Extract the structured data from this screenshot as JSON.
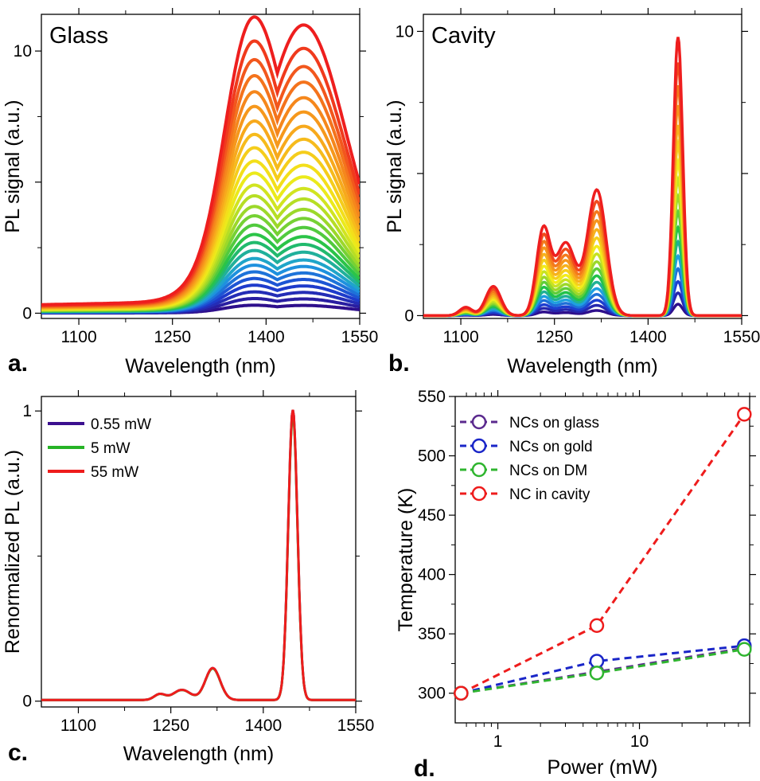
{
  "chart_data": [
    {
      "panel": "a.",
      "type": "line",
      "title": "Glass",
      "xlabel": "Wavelength (nm)",
      "ylabel": "PL signal (a.u.)",
      "xlim": [
        1040,
        1550
      ],
      "ylim": [
        -0.2,
        11.4
      ],
      "xticks": [
        "1100",
        "1250",
        "1400",
        "1550"
      ],
      "yticks": [
        "0",
        "5",
        "10"
      ],
      "ytick_labels_shown": [
        "0",
        "",
        "10"
      ],
      "spectrum_shape": {
        "peaks": [
          {
            "center": 1460,
            "width": 68
          },
          {
            "center": 1360,
            "width": 45
          }
        ],
        "baseline": 0.2
      },
      "series_peak_values": [
        0.3,
        0.55,
        0.8,
        1.05,
        1.3,
        1.55,
        1.8,
        2.05,
        2.35,
        2.65,
        2.95,
        3.3,
        3.65,
        4.0,
        4.4,
        4.8,
        5.25,
        5.7,
        6.2,
        6.7,
        7.2,
        7.75,
        8.3,
        8.9,
        9.5,
        10.2,
        11.1
      ],
      "color_scale": [
        "#2e0f8c",
        "#1d3fd0",
        "#1ea0e0",
        "#22c24a",
        "#9cd82a",
        "#f2ec1a",
        "#f7b21c",
        "#f47a1c",
        "#ee1e1e"
      ]
    },
    {
      "panel": "b.",
      "type": "line",
      "title": "Cavity",
      "xlabel": "Wavelength (nm)",
      "ylabel": "PL signal (a.u.)",
      "xlim": [
        1040,
        1550
      ],
      "ylim": [
        -0.1,
        10.6
      ],
      "xticks": [
        "1100",
        "1250",
        "1400",
        "1550"
      ],
      "yticks": [
        "0",
        "5",
        "10"
      ],
      "ytick_labels_shown": [
        "0",
        "",
        "10"
      ],
      "spectrum_shape": {
        "peaks": [
          {
            "center": 1152,
            "width": 12,
            "rel": 0.105
          },
          {
            "center": 1232,
            "width": 11,
            "rel": 0.3
          },
          {
            "center": 1268,
            "width": 16,
            "rel": 0.26
          },
          {
            "center": 1318,
            "width": 15,
            "rel": 0.45
          },
          {
            "center": 1448,
            "width": 7.5,
            "rel": 1.0
          }
        ],
        "shoulder": {
          "center": 1108,
          "width": 10,
          "rel": 0.03
        }
      },
      "series_peak_values": [
        0.4,
        0.8,
        1.2,
        1.65,
        2.1,
        2.6,
        3.1,
        3.65,
        4.2,
        4.8,
        5.4,
        6.05,
        6.7,
        7.4,
        8.1,
        8.9,
        9.8
      ],
      "color_scale": [
        "#2e0f8c",
        "#1d3fd0",
        "#1ea0e0",
        "#22c24a",
        "#9cd82a",
        "#f2ec1a",
        "#f7b21c",
        "#f47a1c",
        "#ee1e1e"
      ]
    },
    {
      "panel": "c.",
      "type": "line",
      "xlabel": "Wavelength (nm)",
      "ylabel": "Renormalized PL (a.u.)",
      "xlim": [
        1040,
        1550
      ],
      "ylim": [
        -0.02,
        1.05
      ],
      "xticks": [
        "1100",
        "1250",
        "1400",
        "1550"
      ],
      "yticks": [
        "0",
        "1"
      ],
      "legend_position": "top-left",
      "series": [
        {
          "name": "0.55 mW",
          "color": "#3b0f8f"
        },
        {
          "name": "5 mW",
          "color": "#26b326"
        },
        {
          "name": "55 mW",
          "color": "#ee1c1c"
        }
      ],
      "spectrum_shape": {
        "peaks": [
          {
            "center": 1232,
            "width": 9,
            "rel": 0.02
          },
          {
            "center": 1268,
            "width": 14,
            "rel": 0.035
          },
          {
            "center": 1318,
            "width": 12,
            "rel": 0.11
          },
          {
            "center": 1448,
            "width": 7.5,
            "rel": 1.0
          }
        ]
      }
    },
    {
      "panel": "d.",
      "type": "scatter",
      "xlabel": "Power (mW)",
      "ylabel": "Temperature (K)",
      "x_scale": "log",
      "xlim": [
        0.5,
        60
      ],
      "ylim": [
        275,
        550
      ],
      "xticks": [
        "1",
        "10"
      ],
      "yticks": [
        "300",
        "350",
        "400",
        "450",
        "500",
        "550"
      ],
      "legend_position": "top-left",
      "x": [
        0.55,
        5,
        55
      ],
      "series": [
        {
          "name": "NCs on glass",
          "color": "#5b2a8e",
          "values": [
            300,
            318,
            338
          ]
        },
        {
          "name": "NCs on gold",
          "color": "#1a26c8",
          "values": [
            300,
            327,
            340
          ]
        },
        {
          "name": "NCs on DM",
          "color": "#2fb52f",
          "values": [
            300,
            317,
            337
          ]
        },
        {
          "name": "NC in cavity",
          "color": "#ee1c1c",
          "values": [
            300,
            357,
            535
          ]
        }
      ]
    }
  ]
}
